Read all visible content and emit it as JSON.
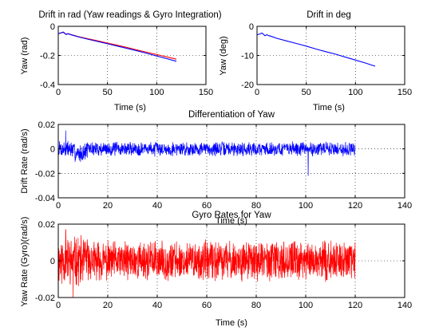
{
  "chart_data": [
    {
      "type": "line",
      "title": "Drift in rad (Yaw readings & Gyro Integration)",
      "xlabel": "Time (s)",
      "ylabel": "Yaw (rad)",
      "xlim": [
        0,
        150
      ],
      "ylim": [
        -0.4,
        0
      ],
      "xticks": [
        0,
        50,
        100,
        150
      ],
      "yticks": [
        0,
        -0.2,
        -0.4
      ],
      "xtick_labels": [
        "0",
        "50",
        "100",
        "150"
      ],
      "ytick_labels": [
        "0",
        "-0.2",
        "-0.4"
      ],
      "grid": true,
      "series": [
        {
          "color": "#ff0000",
          "x": [
            0,
            3,
            5,
            8,
            10,
            12,
            15,
            20,
            30,
            40,
            50,
            60,
            70,
            80,
            90,
            100,
            110,
            120
          ],
          "y": [
            -0.05,
            -0.045,
            -0.04,
            -0.055,
            -0.05,
            -0.055,
            -0.06,
            -0.07,
            -0.085,
            -0.1,
            -0.115,
            -0.13,
            -0.145,
            -0.162,
            -0.178,
            -0.194,
            -0.21,
            -0.226
          ]
        },
        {
          "color": "#0000ff",
          "x": [
            0,
            3,
            5,
            8,
            10,
            12,
            15,
            20,
            30,
            40,
            50,
            60,
            70,
            80,
            90,
            100,
            110,
            120
          ],
          "y": [
            -0.05,
            -0.045,
            -0.04,
            -0.056,
            -0.051,
            -0.056,
            -0.062,
            -0.072,
            -0.088,
            -0.104,
            -0.12,
            -0.136,
            -0.152,
            -0.168,
            -0.186,
            -0.204,
            -0.222,
            -0.24
          ]
        }
      ]
    },
    {
      "type": "line",
      "title": "Drift in deg",
      "xlabel": "Time (s)",
      "ylabel": "Yaw (deg)",
      "xlim": [
        0,
        150
      ],
      "ylim": [
        -20,
        0
      ],
      "xticks": [
        0,
        50,
        100,
        150
      ],
      "yticks": [
        0,
        -10,
        -20
      ],
      "xtick_labels": [
        "0",
        "50",
        "100",
        "150"
      ],
      "ytick_labels": [
        "0",
        "-10",
        "-20"
      ],
      "grid": true,
      "series": [
        {
          "color": "#0000ff",
          "x": [
            0,
            3,
            5,
            8,
            10,
            12,
            15,
            20,
            30,
            40,
            50,
            60,
            70,
            80,
            90,
            100,
            110,
            120
          ],
          "y": [
            -2.9,
            -2.6,
            -2.3,
            -3.2,
            -2.9,
            -3.2,
            -3.5,
            -4.1,
            -5.0,
            -5.9,
            -6.8,
            -7.8,
            -8.7,
            -9.6,
            -10.6,
            -11.6,
            -12.6,
            -13.7
          ]
        }
      ]
    },
    {
      "type": "line",
      "title": "Differentiation of Yaw",
      "xlabel": "Time (s)",
      "ylabel": "Drift Rate (rad/s)",
      "xlim": [
        0,
        140
      ],
      "ylim": [
        -0.04,
        0.02
      ],
      "xticks": [
        0,
        20,
        40,
        60,
        80,
        100,
        120,
        140
      ],
      "yticks": [
        0.02,
        0,
        -0.02,
        -0.04
      ],
      "xtick_labels": [
        "0",
        "20",
        "40",
        "60",
        "80",
        "100",
        "120",
        "140"
      ],
      "ytick_labels": [
        "0.02",
        "0",
        "-0.02",
        "-0.04"
      ],
      "grid": true,
      "series": [
        {
          "color": "#0000ff",
          "x_range": [
            0,
            120
          ],
          "n_points": 1200,
          "amplitude": 0.005,
          "spike": 0.015,
          "spike_at": 3,
          "min_spike": -0.022,
          "min_spike_at": 101,
          "seed": 7
        }
      ]
    },
    {
      "type": "line",
      "title": "Gyro Rates for Yaw",
      "xlabel": "Time (s)",
      "ylabel": "Yaw Rate (Gyro)(rad/s)",
      "xlim": [
        0,
        140
      ],
      "ylim": [
        -0.02,
        0.02
      ],
      "xticks": [
        0,
        20,
        40,
        60,
        80,
        100,
        120,
        140
      ],
      "yticks": [
        0.02,
        0,
        -0.02
      ],
      "xtick_labels": [
        "0",
        "20",
        "40",
        "60",
        "80",
        "100",
        "120",
        "140"
      ],
      "ytick_labels": [
        "0.02",
        "0",
        "-0.02"
      ],
      "grid": true,
      "series": [
        {
          "color": "#ff0000",
          "x_range": [
            0,
            120
          ],
          "n_points": 1500,
          "amplitude": 0.009,
          "spike": 0.017,
          "spike_at": 3,
          "min_spike": -0.02,
          "min_spike_at": 6,
          "seed": 11
        }
      ]
    }
  ]
}
